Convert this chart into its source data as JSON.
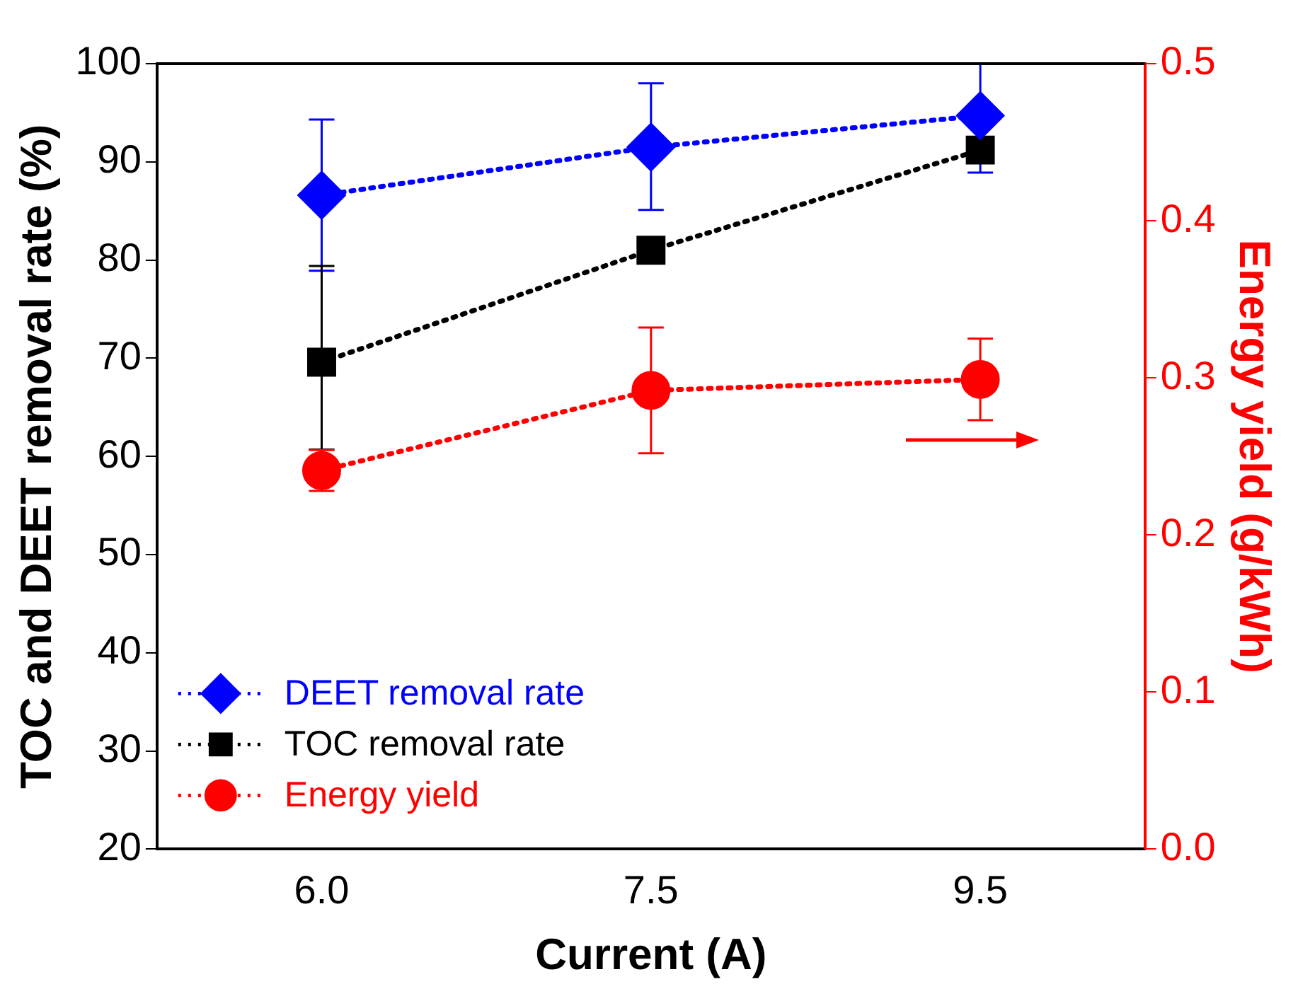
{
  "chart_data": {
    "type": "line",
    "xlabel": "Current (A)",
    "ylabel": "TOC and DEET removal rate (%)",
    "y2label": "Energy yield (g/kWh)",
    "categories": [
      "6.0",
      "7.5",
      "9.5"
    ],
    "series": [
      {
        "name": "DEET removal rate",
        "color": "#0000ff",
        "marker": "diamond",
        "values": [
          86.6,
          91.5,
          94.7
        ],
        "errors": [
          [
            78.9,
            94.3
          ],
          [
            85.1,
            98.0
          ],
          [
            88.9,
            100
          ]
        ]
      },
      {
        "name": "TOC removal rate",
        "color": "#000000",
        "marker": "square",
        "values": [
          69.6,
          81.0,
          91.2
        ],
        "errors": [
          [
            60.7,
            79.4
          ],
          null,
          null
        ]
      },
      {
        "name": "Energy yield",
        "color": "#ff0000",
        "marker": "circle",
        "axis": "y2",
        "values": [
          0.241,
          0.292,
          0.299
        ],
        "errors": [
          [
            0.228,
            0.254
          ],
          [
            0.252,
            0.332
          ],
          [
            0.273,
            0.325
          ]
        ]
      }
    ],
    "ylim": [
      20,
      100
    ],
    "yticks": [
      20,
      30,
      40,
      50,
      60,
      70,
      80,
      90,
      100
    ],
    "y2lim": [
      0.0,
      0.5
    ],
    "y2ticks": [
      {
        "value": 0,
        "label": "0.0"
      },
      0.1,
      0.2,
      0.3,
      0.4,
      0.5
    ],
    "line_style": "dotted",
    "grid": false,
    "legend": "bottom left"
  }
}
